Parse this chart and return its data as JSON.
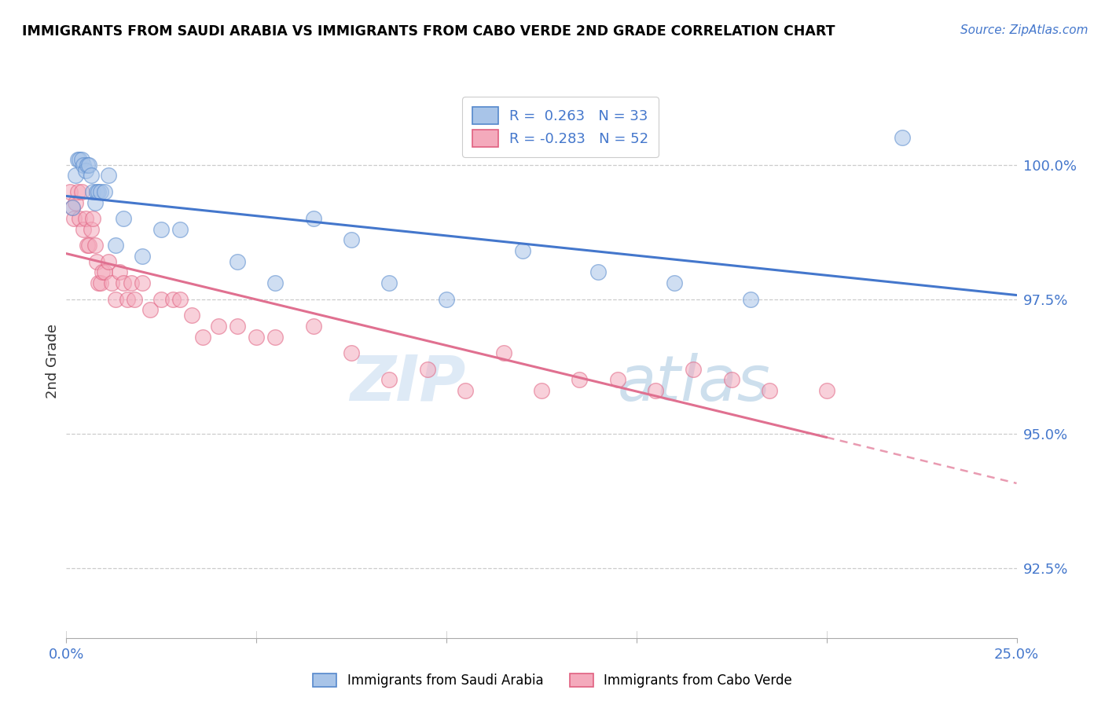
{
  "title": "IMMIGRANTS FROM SAUDI ARABIA VS IMMIGRANTS FROM CABO VERDE 2ND GRADE CORRELATION CHART",
  "source": "Source: ZipAtlas.com",
  "ylabel": "2nd Grade",
  "ylabel_values": [
    92.5,
    95.0,
    97.5,
    100.0
  ],
  "xmin": 0.0,
  "xmax": 25.0,
  "ymin": 91.2,
  "ymax": 101.5,
  "legend_label_saudi": "Immigrants from Saudi Arabia",
  "legend_label_cabo": "Immigrants from Cabo Verde",
  "R_saudi": 0.263,
  "N_saudi": 33,
  "R_cabo": -0.283,
  "N_cabo": 52,
  "color_saudi_fill": "#A8C4E8",
  "color_saudi_edge": "#5588CC",
  "color_cabo_fill": "#F4AABC",
  "color_cabo_edge": "#E06080",
  "color_saudi_line": "#4477CC",
  "color_cabo_line": "#E07090",
  "watermark_color": "#D8E8F8",
  "saudi_x": [
    0.15,
    0.25,
    0.3,
    0.35,
    0.4,
    0.45,
    0.5,
    0.55,
    0.6,
    0.65,
    0.7,
    0.75,
    0.8,
    0.85,
    0.9,
    1.0,
    1.1,
    1.3,
    1.5,
    2.0,
    2.5,
    3.0,
    4.5,
    5.5,
    6.5,
    7.5,
    8.5,
    10.0,
    12.0,
    14.0,
    16.0,
    18.0,
    22.0
  ],
  "saudi_y": [
    99.2,
    99.8,
    100.1,
    100.1,
    100.1,
    100.0,
    99.9,
    100.0,
    100.0,
    99.8,
    99.5,
    99.3,
    99.5,
    99.5,
    99.5,
    99.5,
    99.8,
    98.5,
    99.0,
    98.3,
    98.8,
    98.8,
    98.2,
    97.8,
    99.0,
    98.6,
    97.8,
    97.5,
    98.4,
    98.0,
    97.8,
    97.5,
    100.5
  ],
  "cabo_x": [
    0.1,
    0.15,
    0.2,
    0.25,
    0.3,
    0.35,
    0.4,
    0.45,
    0.5,
    0.55,
    0.6,
    0.65,
    0.7,
    0.75,
    0.8,
    0.85,
    0.9,
    0.95,
    1.0,
    1.1,
    1.2,
    1.3,
    1.4,
    1.5,
    1.6,
    1.7,
    1.8,
    2.0,
    2.2,
    2.5,
    2.8,
    3.0,
    3.3,
    3.6,
    4.0,
    4.5,
    5.0,
    5.5,
    6.5,
    7.5,
    8.5,
    9.5,
    10.5,
    11.5,
    12.5,
    13.5,
    14.5,
    15.5,
    16.5,
    17.5,
    18.5,
    20.0
  ],
  "cabo_y": [
    99.5,
    99.2,
    99.0,
    99.3,
    99.5,
    99.0,
    99.5,
    98.8,
    99.0,
    98.5,
    98.5,
    98.8,
    99.0,
    98.5,
    98.2,
    97.8,
    97.8,
    98.0,
    98.0,
    98.2,
    97.8,
    97.5,
    98.0,
    97.8,
    97.5,
    97.8,
    97.5,
    97.8,
    97.3,
    97.5,
    97.5,
    97.5,
    97.2,
    96.8,
    97.0,
    97.0,
    96.8,
    96.8,
    97.0,
    96.5,
    96.0,
    96.2,
    95.8,
    96.5,
    95.8,
    96.0,
    96.0,
    95.8,
    96.2,
    96.0,
    95.8,
    95.8
  ],
  "xtick_positions": [
    0,
    5,
    10,
    15,
    20,
    25
  ],
  "ytick_line_positions": [
    92.5,
    95.0,
    97.5,
    100.0
  ]
}
